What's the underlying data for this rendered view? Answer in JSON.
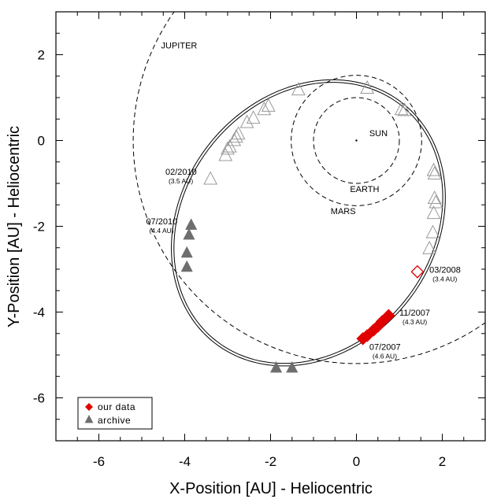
{
  "chart_data": {
    "type": "scatter",
    "xlabel": "X-Position [AU] - Heliocentric",
    "ylabel": "Y-Position [AU] - Heliocentric",
    "xlim": [
      -7,
      3
    ],
    "ylim": [
      -7,
      3
    ],
    "x_ticks": [
      -6,
      -4,
      -2,
      0,
      2
    ],
    "y_ticks": [
      2,
      0,
      -2,
      -4,
      -6
    ],
    "x_tick_labels": [
      "-6",
      "-4",
      "-2",
      "0",
      "2"
    ],
    "y_tick_labels": [
      "2",
      "0",
      "-2",
      "-4",
      "-6"
    ],
    "grid": false,
    "legend_position": "bottom-left",
    "colors": {
      "our_data": "#e00000",
      "archive": "#6e6e6e",
      "open_triangle": "#999999"
    },
    "planet_orbits": [
      {
        "label": "SUN",
        "radius": 0
      },
      {
        "label": "EARTH",
        "radius": 1.0
      },
      {
        "label": "MARS",
        "radius": 1.52
      },
      {
        "label": "JUPITER",
        "radius": 5.2
      }
    ],
    "comet_orbit": {
      "center": [
        -1.12,
        -1.92
      ],
      "semi_major": 3.55,
      "semi_minor": 2.95,
      "tilt_deg": 52
    },
    "series": [
      {
        "name": "our data",
        "marker": "diamond-filled",
        "points": [
          [
            0.15,
            -4.62
          ],
          [
            0.25,
            -4.55
          ],
          [
            0.4,
            -4.42
          ],
          [
            0.5,
            -4.33
          ],
          [
            0.6,
            -4.22
          ],
          [
            0.75,
            -4.08
          ]
        ]
      },
      {
        "name": "archive",
        "marker": "triangle-filled",
        "points": [
          [
            -3.85,
            -1.97
          ],
          [
            -3.9,
            -2.2
          ],
          [
            -3.95,
            -2.62
          ],
          [
            -3.95,
            -2.95
          ],
          [
            -1.87,
            -5.3
          ],
          [
            -1.5,
            -5.3
          ]
        ]
      },
      {
        "marker": "triangle-open",
        "points": [
          [
            -3.4,
            -0.9
          ],
          [
            -3.05,
            -0.35
          ],
          [
            -3.0,
            -0.2
          ],
          [
            -2.95,
            -0.15
          ],
          [
            -2.85,
            0.0
          ],
          [
            -2.8,
            0.08
          ],
          [
            -2.75,
            0.15
          ],
          [
            -2.55,
            0.42
          ],
          [
            -2.4,
            0.52
          ],
          [
            -2.15,
            0.72
          ],
          [
            -2.05,
            0.8
          ],
          [
            -1.35,
            1.18
          ],
          [
            0.25,
            1.22
          ],
          [
            1.05,
            0.72
          ],
          [
            1.12,
            0.7
          ],
          [
            1.8,
            -0.7
          ],
          [
            1.82,
            -0.78
          ],
          [
            1.82,
            -1.35
          ],
          [
            1.85,
            -1.45
          ],
          [
            1.8,
            -1.7
          ],
          [
            1.78,
            -2.15
          ],
          [
            1.7,
            -2.52
          ]
        ]
      },
      {
        "marker": "diamond-open",
        "points": [
          [
            1.42,
            -3.06
          ]
        ]
      }
    ],
    "annotations": [
      {
        "label": "JUPITER",
        "x": -4.55,
        "y": 2.15
      },
      {
        "label": "SUN",
        "x": 0.3,
        "y": 0.1
      },
      {
        "label": "EARTH",
        "x": -0.15,
        "y": -1.2
      },
      {
        "label": "MARS",
        "x": -0.6,
        "y": -1.72
      },
      {
        "label": "02/2010",
        "sub": "(3.5 AU)",
        "x": -4.45,
        "y": -0.8
      },
      {
        "label": "07/2010",
        "sub": "(4.4 AU)",
        "x": -4.9,
        "y": -1.95
      },
      {
        "label": "03/2008",
        "sub": "(3.4 AU)",
        "x": 1.7,
        "y": -3.08
      },
      {
        "label": "11/2007",
        "sub": "(4.3 AU)",
        "x": 1.0,
        "y": -4.08
      },
      {
        "label": "07/2007",
        "sub": "(4.6 AU)",
        "x": 0.3,
        "y": -4.88
      }
    ]
  }
}
